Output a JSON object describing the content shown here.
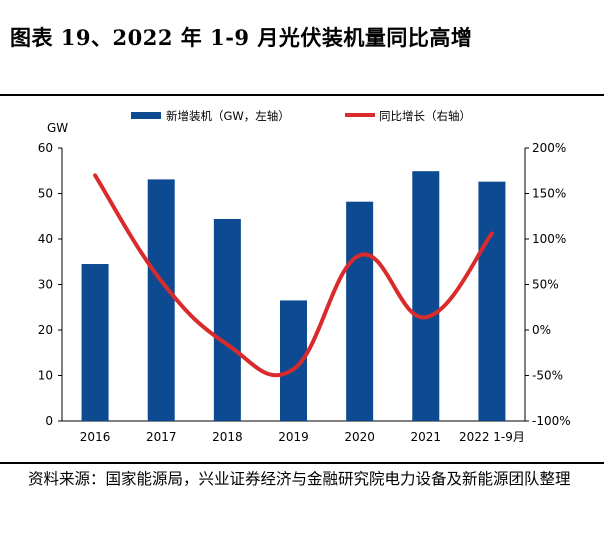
{
  "figure": {
    "title": "图表 19、2022 年 1-9 月光伏装机量同比高增",
    "source": "资料来源：国家能源局，兴业证券经济与金融研究院电力设备及新能源团队整理"
  },
  "colors": {
    "bar": "#0d4a91",
    "line": "#d92b2b"
  },
  "chart_data": {
    "type": "bar",
    "categories": [
      "2016",
      "2017",
      "2018",
      "2019",
      "2020",
      "2021",
      "2022 1-9月"
    ],
    "series": [
      {
        "name": "新增装机（GW，左轴）",
        "type": "bar",
        "axis": "left",
        "values": [
          34.5,
          53.1,
          44.4,
          26.5,
          48.2,
          54.9,
          52.6
        ]
      },
      {
        "name": "同比增长（右轴）",
        "type": "line",
        "axis": "right",
        "values": [
          170,
          54,
          -16,
          -43,
          82,
          14,
          106
        ]
      }
    ],
    "left_axis": {
      "label": "GW",
      "ylim": [
        0,
        60
      ],
      "ticks": [
        "0",
        "10",
        "20",
        "30",
        "40",
        "50",
        "60"
      ]
    },
    "right_axis": {
      "ylim": [
        -100,
        200
      ],
      "ticks": [
        "-100%",
        "-50%",
        "0%",
        "50%",
        "100%",
        "150%",
        "200%"
      ]
    },
    "legend": [
      "新增装机（GW，左轴）",
      "同比增长（右轴）"
    ]
  }
}
